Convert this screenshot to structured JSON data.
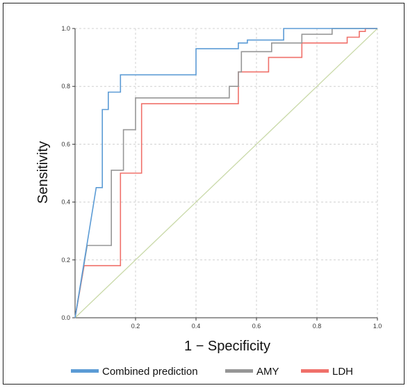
{
  "chart_data": {
    "type": "line",
    "xlabel": "1 − Specificity",
    "ylabel": "Sensitivity",
    "xlim": [
      0,
      1
    ],
    "ylim": [
      0,
      1
    ],
    "grid": true,
    "legend_position": "bottom",
    "x_ticks": [
      "0.2",
      "0.4",
      "0.6",
      "0.8",
      "1.0"
    ],
    "y_ticks": [
      "0.0",
      "0.2",
      "0.4",
      "0.6",
      "0.8",
      "1.0"
    ],
    "series": [
      {
        "name": "Combined prediction",
        "color": "#5b9bd5",
        "points": [
          [
            0,
            0
          ],
          [
            0.07,
            0.45
          ],
          [
            0.09,
            0.45
          ],
          [
            0.09,
            0.72
          ],
          [
            0.11,
            0.72
          ],
          [
            0.11,
            0.78
          ],
          [
            0.13,
            0.78
          ],
          [
            0.15,
            0.78
          ],
          [
            0.15,
            0.84
          ],
          [
            0.4,
            0.84
          ],
          [
            0.4,
            0.93
          ],
          [
            0.54,
            0.93
          ],
          [
            0.54,
            0.95
          ],
          [
            0.57,
            0.95
          ],
          [
            0.57,
            0.96
          ],
          [
            0.69,
            0.96
          ],
          [
            0.69,
            1.0
          ],
          [
            1.0,
            1.0
          ]
        ]
      },
      {
        "name": "AMY",
        "color": "#969696",
        "points": [
          [
            0,
            0
          ],
          [
            0.04,
            0.25
          ],
          [
            0.12,
            0.25
          ],
          [
            0.12,
            0.51
          ],
          [
            0.16,
            0.51
          ],
          [
            0.16,
            0.65
          ],
          [
            0.2,
            0.65
          ],
          [
            0.2,
            0.76
          ],
          [
            0.51,
            0.76
          ],
          [
            0.51,
            0.8
          ],
          [
            0.54,
            0.8
          ],
          [
            0.54,
            0.85
          ],
          [
            0.55,
            0.85
          ],
          [
            0.55,
            0.92
          ],
          [
            0.65,
            0.92
          ],
          [
            0.65,
            0.95
          ],
          [
            0.75,
            0.95
          ],
          [
            0.75,
            0.98
          ],
          [
            0.85,
            0.98
          ],
          [
            0.85,
            1.0
          ],
          [
            1.0,
            1.0
          ]
        ]
      },
      {
        "name": "LDH",
        "color": "#f0706a",
        "points": [
          [
            0,
            0
          ],
          [
            0.03,
            0.18
          ],
          [
            0.15,
            0.18
          ],
          [
            0.15,
            0.5
          ],
          [
            0.22,
            0.5
          ],
          [
            0.22,
            0.74
          ],
          [
            0.54,
            0.74
          ],
          [
            0.54,
            0.85
          ],
          [
            0.64,
            0.85
          ],
          [
            0.64,
            0.9
          ],
          [
            0.75,
            0.9
          ],
          [
            0.75,
            0.95
          ],
          [
            0.9,
            0.95
          ],
          [
            0.9,
            0.97
          ],
          [
            0.94,
            0.97
          ],
          [
            0.94,
            0.99
          ],
          [
            0.96,
            0.99
          ],
          [
            0.96,
            1.0
          ],
          [
            1.0,
            1.0
          ]
        ]
      }
    ],
    "reference_line": {
      "color": "#c9d9a8",
      "points": [
        [
          0,
          0
        ],
        [
          1,
          1
        ]
      ]
    }
  }
}
